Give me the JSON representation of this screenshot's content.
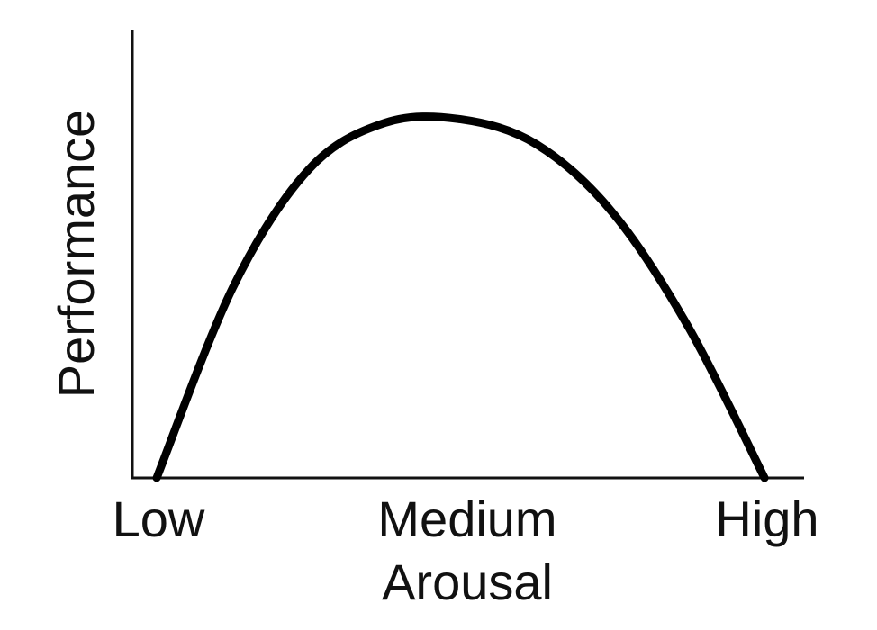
{
  "chart_data": {
    "type": "line",
    "title": "",
    "xlabel": "Arousal",
    "ylabel": "Performance",
    "categories": [
      "Low",
      "Medium",
      "High"
    ],
    "x": [
      0,
      0.25,
      0.5,
      0.75,
      1,
      1.25,
      1.5,
      1.75,
      2
    ],
    "values": [
      0,
      0.53,
      0.86,
      0.99,
      1.0,
      0.93,
      0.74,
      0.42,
      0
    ],
    "xlim": [
      -0.08,
      2.13
    ],
    "ylim": [
      0,
      1.25
    ],
    "grid": false,
    "legend": "none",
    "colors": {
      "curve": "#000000",
      "axis": "#111111",
      "text": "#111111"
    }
  }
}
